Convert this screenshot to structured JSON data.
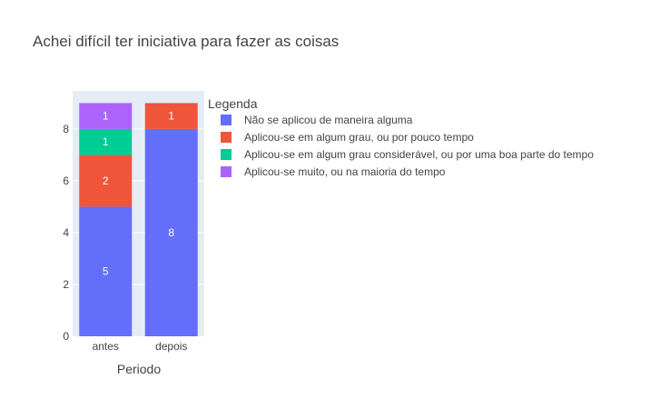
{
  "chart_data": {
    "type": "bar",
    "stacked": true,
    "title": "Achei difícil ter iniciativa para fazer as coisas",
    "xlabel": "Periodo",
    "ylabel": "",
    "categories": [
      "antes",
      "depois"
    ],
    "ylim": [
      0,
      9.47
    ],
    "yticks": [
      0,
      2,
      4,
      6,
      8
    ],
    "grid": true,
    "legend_title": "Legenda",
    "legend_position": "right",
    "series": [
      {
        "name": "Não se aplicou de maneira alguma",
        "values": [
          5,
          8
        ],
        "color": "#636efa"
      },
      {
        "name": "Aplicou-se em algum grau, ou por pouco tempo",
        "values": [
          2,
          1
        ],
        "color": "#ef553b"
      },
      {
        "name": "Aplicou-se em algum grau considerável, ou por uma boa parte do tempo",
        "values": [
          1,
          0
        ],
        "color": "#00cc96"
      },
      {
        "name": "Aplicou-se muito, ou na maioria do tempo",
        "values": [
          1,
          0
        ],
        "color": "#ab63fa"
      }
    ]
  }
}
